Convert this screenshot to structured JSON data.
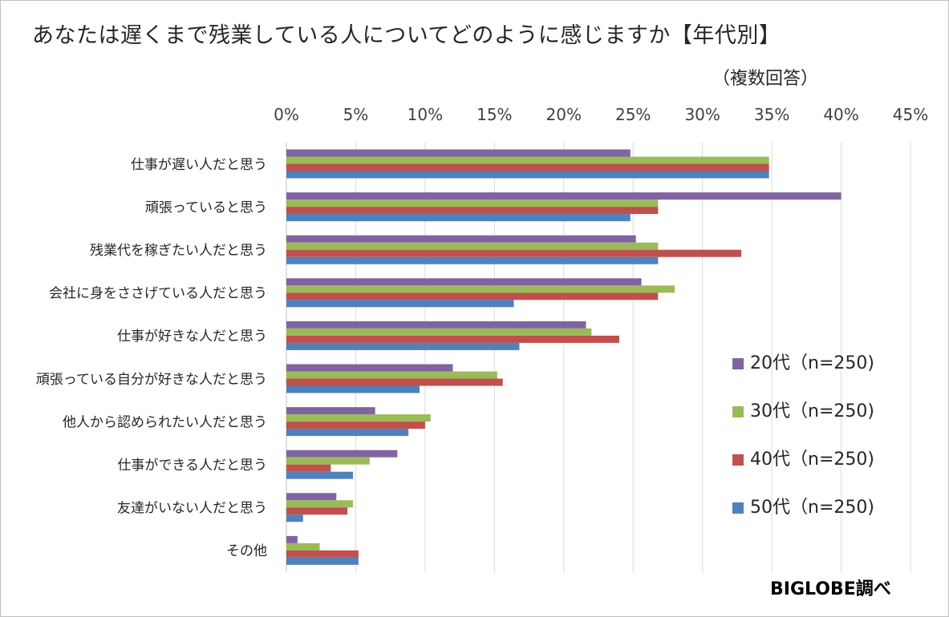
{
  "title": "あなたは遅くまで残業している人についてどのように感じますか【年代別】",
  "subtitle": "（複数回答）",
  "credit": "BIGLOBE調べ",
  "chart_data": {
    "type": "bar",
    "orientation": "horizontal",
    "title": "あなたは遅くまで残業している人についてどのように感じますか【年代別】",
    "xlim": [
      0,
      45
    ],
    "x_ticks": [
      "0%",
      "5%",
      "10%",
      "15%",
      "20%",
      "25%",
      "30%",
      "35%",
      "40%",
      "45%"
    ],
    "x_tick_values": [
      0,
      5,
      10,
      15,
      20,
      25,
      30,
      35,
      40,
      45
    ],
    "grid": true,
    "legend_position": "right",
    "categories": [
      "仕事が遅い人だと思う",
      "頑張っていると思う",
      "残業代を稼ぎたい人だと思う",
      "会社に身をささげている人だと思う",
      "仕事が好きな人だと思う",
      "頑張っている自分が好きな人だと思う",
      "他人から認められたい人だと思う",
      "仕事ができる人だと思う",
      "友達がいない人だと思う",
      "その他"
    ],
    "series": [
      {
        "name": "20代（n=250)",
        "color": "#8064a2",
        "values": [
          24.8,
          40.0,
          25.2,
          25.6,
          21.6,
          12.0,
          6.4,
          8.0,
          3.6,
          0.8
        ]
      },
      {
        "name": "30代（n=250)",
        "color": "#9bbb59",
        "values": [
          34.8,
          26.8,
          26.8,
          28.0,
          22.0,
          15.2,
          10.4,
          6.0,
          4.8,
          2.4
        ]
      },
      {
        "name": "40代（n=250)",
        "color": "#c0504d",
        "values": [
          34.8,
          26.8,
          32.8,
          26.8,
          24.0,
          15.6,
          10.0,
          3.2,
          4.4,
          5.2
        ]
      },
      {
        "name": "50代（n=250)",
        "color": "#4f81bd",
        "values": [
          34.8,
          24.8,
          26.8,
          16.4,
          16.8,
          9.6,
          8.8,
          4.8,
          1.2,
          5.2
        ]
      }
    ]
  }
}
